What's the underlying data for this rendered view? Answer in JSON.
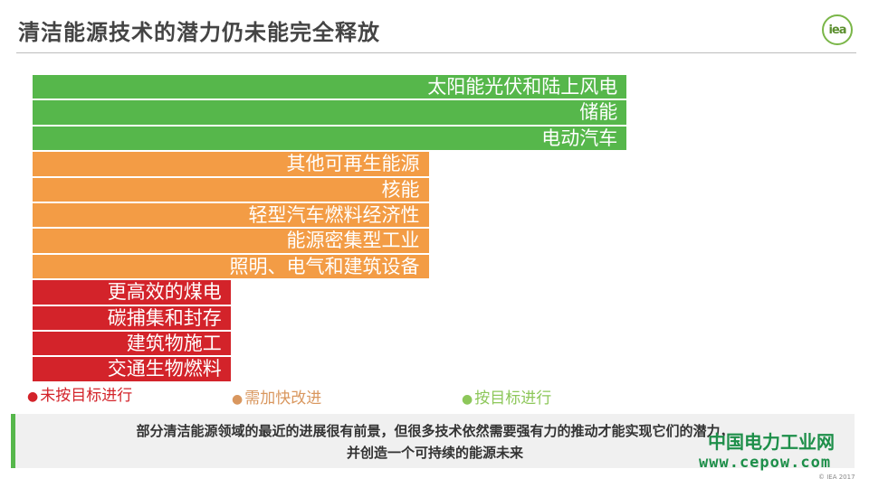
{
  "slide": {
    "title": "清洁能源技术的潜力仍未能完全释放",
    "logo_text": "iea",
    "summary_line1": "部分清洁能源领域的最近的进展很有前景，但很多技术依然需要强有力的推动才能实现它们的潜力，",
    "summary_line2": "并创造一个可持续的能源未来",
    "copyright": "© IEA 2017"
  },
  "watermark": {
    "name": "中国电力工业网",
    "url": "www.cepow.com"
  },
  "colors": {
    "on_track": "#56b74b",
    "more_effort": "#f39c45",
    "not_on_track": "#d3232a",
    "legend_on_track": "#8dc75a",
    "legend_more_effort": "#d9975f",
    "legend_not_on_track": "#d3232a"
  },
  "legend": [
    {
      "status": "not_on_track",
      "dot": "●",
      "label": "未按目标进行"
    },
    {
      "status": "more_effort",
      "dot": "●",
      "label": "需加快改进"
    },
    {
      "status": "on_track",
      "dot": "●",
      "label": "按目标进行"
    }
  ],
  "chart_data": {
    "type": "bar",
    "orientation": "horizontal",
    "title": "",
    "categories": [
      "太阳能光伏和陆上风电",
      "储能",
      "电动汽车",
      "其他可再生能源",
      "核能",
      "轻型汽车燃料经济性",
      "能源密集型工业",
      "照明、电气和建筑设备",
      "更高效的煤电",
      "碳捕集和封存",
      "建筑物施工",
      "交通生物燃料"
    ],
    "status": [
      "on_track",
      "on_track",
      "on_track",
      "more_effort",
      "more_effort",
      "more_effort",
      "more_effort",
      "more_effort",
      "not_on_track",
      "not_on_track",
      "not_on_track",
      "not_on_track"
    ],
    "values": [
      3,
      3,
      3,
      2,
      2,
      2,
      2,
      2,
      1,
      1,
      1,
      1
    ],
    "xlim": [
      0,
      4.16
    ],
    "grid": false,
    "legend_position": "bottom"
  }
}
